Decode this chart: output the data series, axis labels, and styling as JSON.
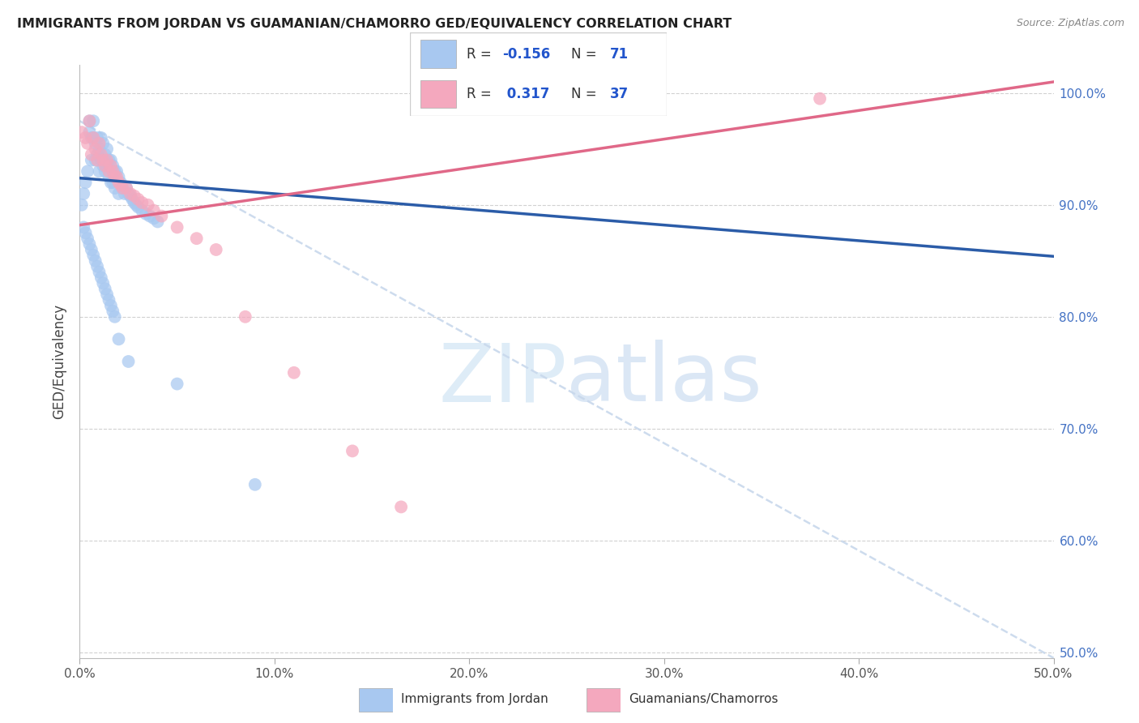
{
  "title": "IMMIGRANTS FROM JORDAN VS GUAMANIAN/CHAMORRO GED/EQUIVALENCY CORRELATION CHART",
  "source": "Source: ZipAtlas.com",
  "ylabel": "GED/Equivalency",
  "xmin": 0.0,
  "xmax": 0.5,
  "ymin": 0.495,
  "ymax": 1.025,
  "y_ticks": [
    0.5,
    0.6,
    0.7,
    0.8,
    0.9,
    1.0
  ],
  "y_tick_labels": [
    "50.0%",
    "60.0%",
    "70.0%",
    "80.0%",
    "90.0%",
    "100.0%"
  ],
  "x_ticks": [
    0.0,
    0.1,
    0.2,
    0.3,
    0.4,
    0.5
  ],
  "x_tick_labels": [
    "0.0%",
    "10.0%",
    "20.0%",
    "30.0%",
    "40.0%",
    "50.0%"
  ],
  "color_blue": "#A8C8F0",
  "color_pink": "#F4A8BE",
  "color_blue_line": "#2B5CA8",
  "color_pink_line": "#E06888",
  "color_dashed": "#C8D8EC",
  "legend_label1": "Immigrants from Jordan",
  "legend_label2": "Guamanians/Chamorros",
  "blue_x": [
    0.001,
    0.002,
    0.003,
    0.004,
    0.005,
    0.005,
    0.006,
    0.006,
    0.007,
    0.007,
    0.008,
    0.008,
    0.009,
    0.009,
    0.01,
    0.01,
    0.011,
    0.011,
    0.012,
    0.012,
    0.013,
    0.013,
    0.014,
    0.014,
    0.015,
    0.015,
    0.016,
    0.016,
    0.017,
    0.017,
    0.018,
    0.018,
    0.019,
    0.02,
    0.02,
    0.021,
    0.022,
    0.023,
    0.024,
    0.025,
    0.026,
    0.027,
    0.028,
    0.029,
    0.03,
    0.032,
    0.034,
    0.036,
    0.038,
    0.04,
    0.002,
    0.003,
    0.004,
    0.005,
    0.006,
    0.007,
    0.008,
    0.009,
    0.01,
    0.011,
    0.012,
    0.013,
    0.014,
    0.015,
    0.016,
    0.017,
    0.018,
    0.02,
    0.025,
    0.05,
    0.09
  ],
  "blue_y": [
    0.9,
    0.91,
    0.92,
    0.93,
    0.965,
    0.975,
    0.96,
    0.94,
    0.975,
    0.96,
    0.955,
    0.94,
    0.96,
    0.945,
    0.95,
    0.93,
    0.96,
    0.94,
    0.955,
    0.935,
    0.945,
    0.93,
    0.95,
    0.935,
    0.94,
    0.925,
    0.94,
    0.92,
    0.935,
    0.92,
    0.93,
    0.915,
    0.93,
    0.925,
    0.91,
    0.92,
    0.915,
    0.91,
    0.915,
    0.91,
    0.908,
    0.905,
    0.902,
    0.9,
    0.898,
    0.895,
    0.892,
    0.89,
    0.888,
    0.885,
    0.88,
    0.875,
    0.87,
    0.865,
    0.86,
    0.855,
    0.85,
    0.845,
    0.84,
    0.835,
    0.83,
    0.825,
    0.82,
    0.815,
    0.81,
    0.805,
    0.8,
    0.78,
    0.76,
    0.74,
    0.65
  ],
  "pink_x": [
    0.001,
    0.003,
    0.004,
    0.005,
    0.006,
    0.007,
    0.008,
    0.009,
    0.01,
    0.011,
    0.012,
    0.013,
    0.014,
    0.015,
    0.016,
    0.017,
    0.018,
    0.019,
    0.02,
    0.021,
    0.022,
    0.024,
    0.026,
    0.028,
    0.03,
    0.032,
    0.035,
    0.038,
    0.042,
    0.05,
    0.06,
    0.07,
    0.085,
    0.11,
    0.14,
    0.165,
    0.38
  ],
  "pink_y": [
    0.965,
    0.96,
    0.955,
    0.975,
    0.945,
    0.96,
    0.95,
    0.94,
    0.955,
    0.945,
    0.94,
    0.935,
    0.94,
    0.93,
    0.935,
    0.93,
    0.925,
    0.925,
    0.92,
    0.918,
    0.915,
    0.915,
    0.91,
    0.908,
    0.905,
    0.902,
    0.9,
    0.895,
    0.89,
    0.88,
    0.87,
    0.86,
    0.8,
    0.75,
    0.68,
    0.63,
    0.995
  ],
  "blue_trend_x": [
    0.0,
    0.5
  ],
  "blue_trend_y": [
    0.924,
    0.854
  ],
  "pink_trend_x": [
    0.0,
    0.5
  ],
  "pink_trend_y": [
    0.882,
    1.01
  ],
  "dashed_line_x": [
    0.0,
    0.5
  ],
  "dashed_line_y": [
    0.975,
    0.495
  ]
}
